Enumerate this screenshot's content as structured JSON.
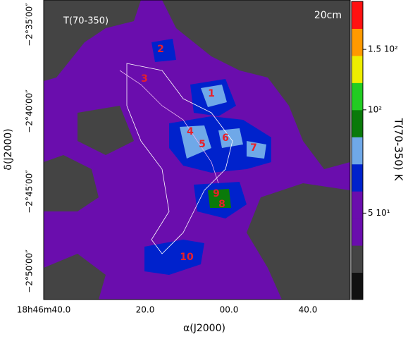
{
  "chart_data": {
    "type": "image",
    "title": "T(70-350)",
    "band_label": "20cm",
    "xlabel": "α(J2000)",
    "ylabel": "δ(J2000)",
    "xtick_labels": [
      "18h46m40.0",
      "20.0",
      "00.0",
      "40.0"
    ],
    "ytick_labels": [
      "−2°35′00″",
      "−2°40′00″",
      "−2°45′00″",
      "−2°50′00″"
    ],
    "regions": [
      "1",
      "2",
      "3",
      "4",
      "5",
      "6",
      "7",
      "8",
      "9",
      "10"
    ],
    "colorbar": {
      "label": "T(70-350) K",
      "log": true,
      "lim": [
        28,
        207
      ],
      "colors": [
        "#111111",
        "#444444",
        "#6a0dad",
        "#6a0dad",
        "#0022cc",
        "#6fa8e8",
        "#0a7a0a",
        "#22cc22",
        "#eeee00",
        "#ff9900",
        "#ff1111"
      ],
      "ticks": [
        {
          "value": 150,
          "label": "1.5 10²"
        },
        {
          "value": 100,
          "label": "10²"
        },
        {
          "value": 50,
          "label": "5 10¹"
        }
      ]
    }
  }
}
